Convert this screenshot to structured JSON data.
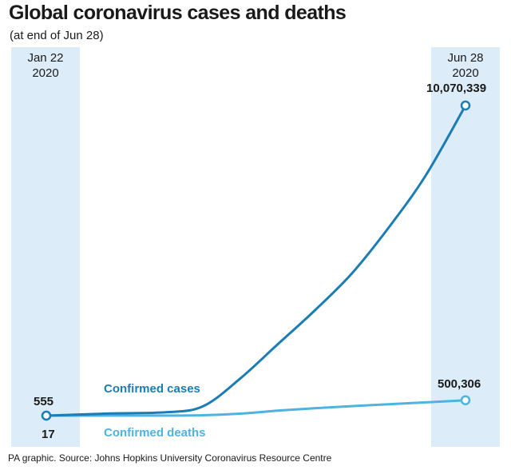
{
  "chart_data": {
    "type": "line",
    "title": "Global coronavirus cases and deaths",
    "subtitle": "(at end of Jun 28)",
    "x_start_label": {
      "month_day": "Jan 22",
      "year": "2020"
    },
    "x_end_label": {
      "month_day": "Jun 28",
      "year": "2020"
    },
    "x": [
      "2020-01-22",
      "2020-02-15",
      "2020-03-07",
      "2020-03-21",
      "2020-04-04",
      "2020-04-18",
      "2020-05-02",
      "2020-05-16",
      "2020-05-30",
      "2020-06-13",
      "2020-06-28"
    ],
    "series": [
      {
        "name": "Confirmed cases",
        "color": "#1a7db6",
        "values": [
          555,
          70000,
          110000,
          300000,
          1200000,
          2300000,
          3400000,
          4600000,
          6100000,
          7800000,
          10070339
        ],
        "start_label": "555",
        "end_label": "10,070,339"
      },
      {
        "name": "Confirmed deaths",
        "color": "#4db3e0",
        "values": [
          17,
          1700,
          3600,
          13000,
          65000,
          160000,
          240000,
          310000,
          370000,
          430000,
          500306
        ],
        "start_label": "17",
        "end_label": "500,306"
      }
    ],
    "grid": false,
    "legend": "inline labels"
  },
  "source": "PA graphic. Source: Johns Hopkins University Coronavirus Resource Centre"
}
